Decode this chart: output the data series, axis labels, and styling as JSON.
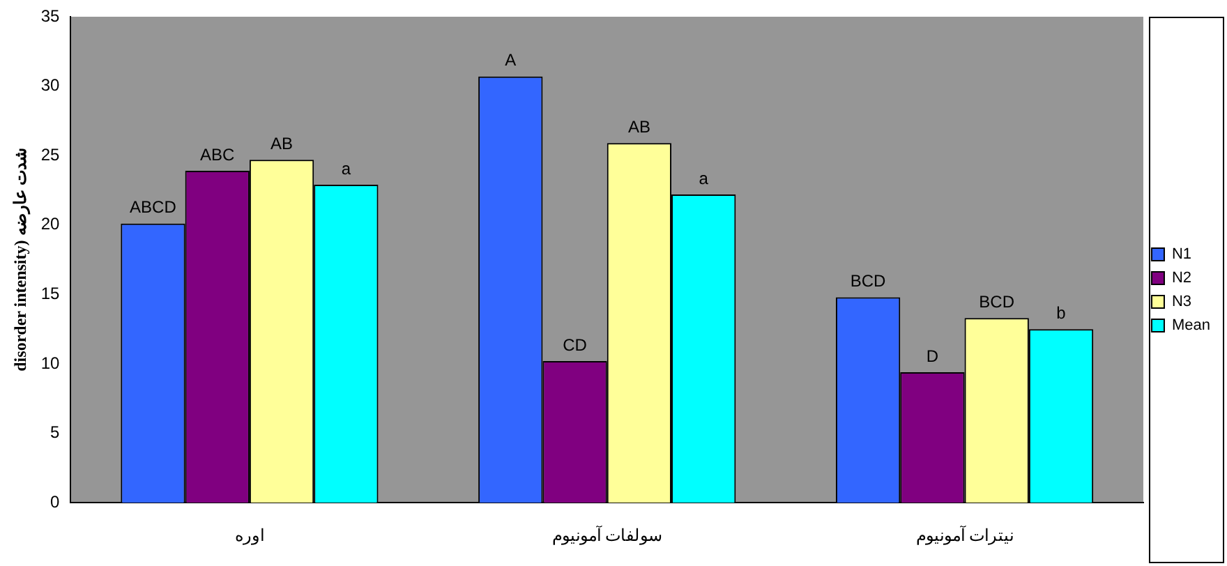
{
  "chart_data": {
    "type": "bar",
    "ylabel": "disorder intensity) شدت عارضه",
    "categories": [
      "اوره",
      "سولفات آمونیوم",
      "نیترات آمونیوم"
    ],
    "series": [
      {
        "name": "N1",
        "color": "#3366ff",
        "values": [
          20.1,
          30.7,
          14.8
        ],
        "value_labels": [
          "ABCD",
          "A",
          "BCD"
        ]
      },
      {
        "name": "N2",
        "color": "#800080",
        "values": [
          23.9,
          10.2,
          9.4
        ],
        "value_labels": [
          "ABC",
          "CD",
          "D"
        ]
      },
      {
        "name": "N3",
        "color": "#ffff99",
        "values": [
          24.7,
          25.9,
          13.3
        ],
        "value_labels": [
          "AB",
          "AB",
          "BCD"
        ]
      },
      {
        "name": "Mean",
        "color": "#00ffff",
        "values": [
          22.9,
          22.2,
          12.5
        ],
        "value_labels": [
          "a",
          "a",
          "b"
        ]
      }
    ],
    "ylim": [
      0,
      35
    ],
    "yticks": [
      0,
      5,
      10,
      15,
      20,
      25,
      30,
      35
    ],
    "grid": false,
    "legend": "right"
  }
}
